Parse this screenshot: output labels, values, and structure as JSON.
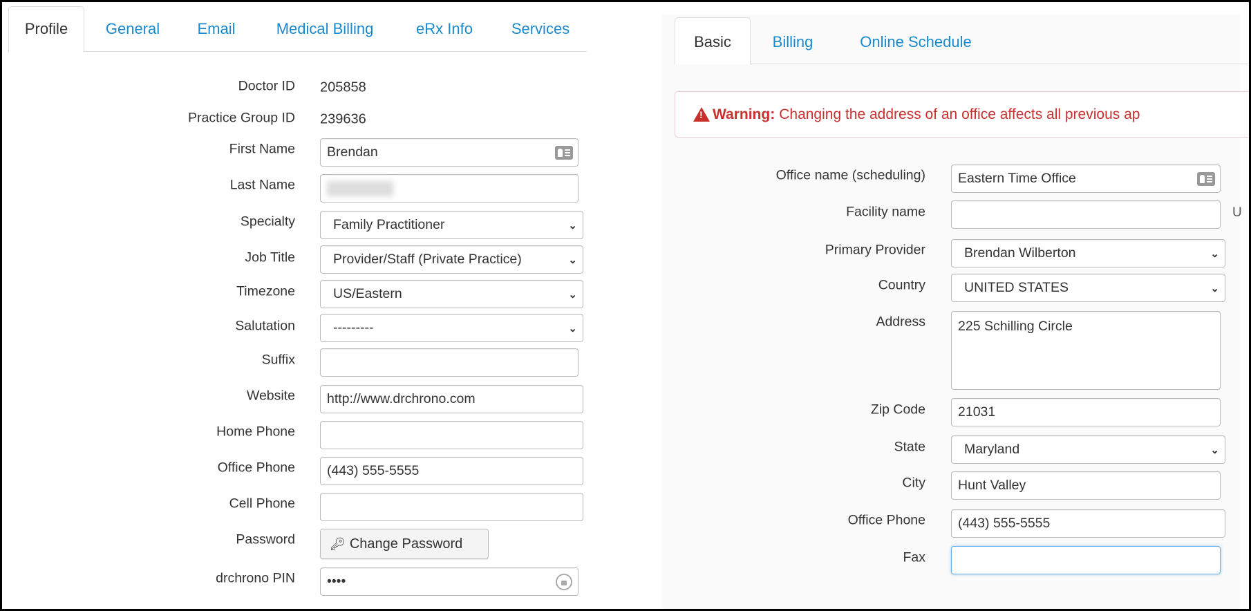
{
  "left": {
    "tabs": [
      "Profile",
      "General",
      "Email",
      "Medical Billing",
      "eRx Info",
      "Services"
    ],
    "active_tab": "Profile",
    "fields": {
      "doctor_id": {
        "label": "Doctor ID",
        "value": "205858"
      },
      "practice_group_id": {
        "label": "Practice Group ID",
        "value": "239636"
      },
      "first_name": {
        "label": "First Name",
        "value": "Brendan"
      },
      "last_name": {
        "label": "Last Name",
        "value": ""
      },
      "specialty": {
        "label": "Specialty",
        "value": "Family Practitioner"
      },
      "job_title": {
        "label": "Job Title",
        "value": "Provider/Staff (Private Practice)"
      },
      "timezone": {
        "label": "Timezone",
        "value": "US/Eastern"
      },
      "salutation": {
        "label": "Salutation",
        "value": "---------"
      },
      "suffix": {
        "label": "Suffix",
        "value": ""
      },
      "website": {
        "label": "Website",
        "value": "http://www.drchrono.com"
      },
      "home_phone": {
        "label": "Home Phone",
        "value": ""
      },
      "office_phone": {
        "label": "Office Phone",
        "value": "(443) 555-5555"
      },
      "cell_phone": {
        "label": "Cell Phone",
        "value": ""
      },
      "password": {
        "label": "Password",
        "button": "Change Password"
      },
      "pin": {
        "label": "drchrono PIN",
        "value": "••••"
      }
    }
  },
  "right": {
    "tabs": [
      "Basic",
      "Billing",
      "Online Schedule"
    ],
    "active_tab": "Basic",
    "warning": {
      "title": "Warning:",
      "text": "Changing the address of an office affects all previous ap"
    },
    "fields": {
      "office_name": {
        "label": "Office name (scheduling)",
        "value": "Eastern Time Office"
      },
      "facility_name": {
        "label": "Facility name",
        "value": "",
        "trailing": "U"
      },
      "primary_provider": {
        "label": "Primary Provider",
        "value": "Brendan Wilberton"
      },
      "country": {
        "label": "Country",
        "value": "UNITED STATES"
      },
      "address": {
        "label": "Address",
        "value": "225 Schilling Circle"
      },
      "zip": {
        "label": "Zip Code",
        "value": "21031"
      },
      "state": {
        "label": "State",
        "value": "Maryland"
      },
      "city": {
        "label": "City",
        "value": "Hunt Valley"
      },
      "office_phone": {
        "label": "Office Phone",
        "value": "(443) 555-5555"
      },
      "fax": {
        "label": "Fax",
        "value": ""
      }
    }
  },
  "colors": {
    "link": "#1a8ad0",
    "warning": "#c9302c",
    "focus": "#66afe9"
  }
}
